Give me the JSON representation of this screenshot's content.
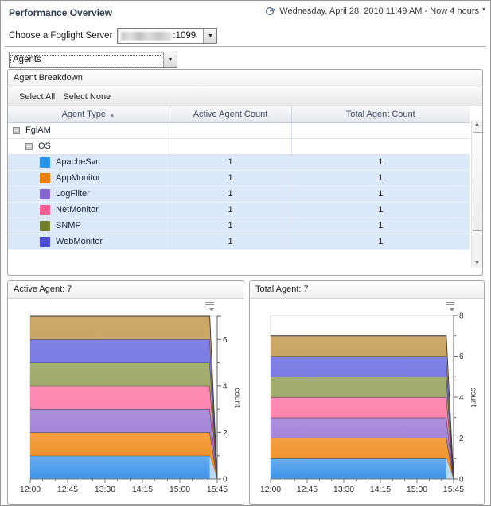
{
  "page": {
    "title": "Performance Overview"
  },
  "timebar": {
    "text": "Wednesday, April 28, 2010 11:49 AM - Now 4 hours",
    "caret": "▾"
  },
  "server": {
    "label": "Choose a Foglight Server",
    "port_suffix": ":1099",
    "value_redacted": true
  },
  "selector": {
    "value": "Agents"
  },
  "agent_breakdown": {
    "title": "Agent Breakdown",
    "toolbar": {
      "select_all": "Select All",
      "select_none": "Select None"
    },
    "columns": [
      "Agent Type",
      "Active Agent Count",
      "Total Agent Count"
    ],
    "sort_indicator": "▲",
    "rows": [
      {
        "type": "group",
        "label": "FglAM",
        "indent": 0,
        "active": "",
        "total": ""
      },
      {
        "type": "group",
        "label": "OS",
        "indent": 1,
        "active": "",
        "total": ""
      },
      {
        "type": "agent",
        "label": "ApacheSvr",
        "color": "#2b93e8",
        "active": "1",
        "total": "1"
      },
      {
        "type": "agent",
        "label": "AppMonitor",
        "color": "#e8820e",
        "active": "1",
        "total": "1"
      },
      {
        "type": "agent",
        "label": "LogFilter",
        "color": "#8465cc",
        "active": "1",
        "total": "1"
      },
      {
        "type": "agent",
        "label": "NetMonitor",
        "color": "#fb5c93",
        "active": "1",
        "total": "1"
      },
      {
        "type": "agent",
        "label": "SNMP",
        "color": "#6f7f2a",
        "active": "1",
        "total": "1"
      },
      {
        "type": "agent",
        "label": "WebMonitor",
        "color": "#4c4cd2",
        "active": "1",
        "total": "1"
      }
    ]
  },
  "chart_data": [
    {
      "type": "area",
      "stacked": true,
      "title": "Active Agent: 7",
      "ylabel": "count",
      "ylim": [
        0,
        7
      ],
      "y_label_step": 2,
      "x_tick_labels": [
        "12:00",
        "12:45",
        "13:30",
        "14:15",
        "15:00",
        "15:45"
      ],
      "x_minor_per_major": 3,
      "x": [
        "12:00",
        "15:36",
        "15:45"
      ],
      "note": "Seven stacked bands, one per agent type, each constant at 1 (total 7) across the window, dropping to 0 at the right edge (Now). Legend not shown; y-axis on right.",
      "series": [
        {
          "name": "blue-band",
          "color": "#3e95e9",
          "values": [
            1,
            1,
            0
          ]
        },
        {
          "name": "orange-band",
          "color": "#ee8612",
          "values": [
            1,
            1,
            0
          ]
        },
        {
          "name": "purple-band",
          "color": "#9571d2",
          "values": [
            1,
            1,
            0
          ]
        },
        {
          "name": "pink-band",
          "color": "#fc6c9f",
          "values": [
            1,
            1,
            0
          ]
        },
        {
          "name": "olive-band",
          "color": "#8a984a",
          "values": [
            1,
            1,
            0
          ]
        },
        {
          "name": "indigo-band",
          "color": "#5e5edc",
          "values": [
            1,
            1,
            0
          ]
        },
        {
          "name": "gold-band",
          "color": "#be9140",
          "values": [
            1,
            1,
            0
          ]
        }
      ]
    },
    {
      "type": "area",
      "stacked": true,
      "title": "Total Agent: 7",
      "ylabel": "count",
      "ylim": [
        0,
        8
      ],
      "y_label_step": 2,
      "x_tick_labels": [
        "12:00",
        "12:45",
        "13:30",
        "14:15",
        "15:00",
        "15:45"
      ],
      "x_minor_per_major": 3,
      "x": [
        "12:00",
        "15:36",
        "15:45"
      ],
      "note": "Same seven bands, each constant at 1 (total 7), y-axis to 8, dropping to 0 at the right edge (Now).",
      "series": [
        {
          "name": "blue-band",
          "color": "#3e95e9",
          "values": [
            1,
            1,
            0
          ]
        },
        {
          "name": "orange-band",
          "color": "#ee8612",
          "values": [
            1,
            1,
            0
          ]
        },
        {
          "name": "purple-band",
          "color": "#9571d2",
          "values": [
            1,
            1,
            0
          ]
        },
        {
          "name": "pink-band",
          "color": "#fc6c9f",
          "values": [
            1,
            1,
            0
          ]
        },
        {
          "name": "olive-band",
          "color": "#8a984a",
          "values": [
            1,
            1,
            0
          ]
        },
        {
          "name": "indigo-band",
          "color": "#5e5edc",
          "values": [
            1,
            1,
            0
          ]
        },
        {
          "name": "gold-band",
          "color": "#be9140",
          "values": [
            1,
            1,
            0
          ]
        }
      ]
    }
  ]
}
